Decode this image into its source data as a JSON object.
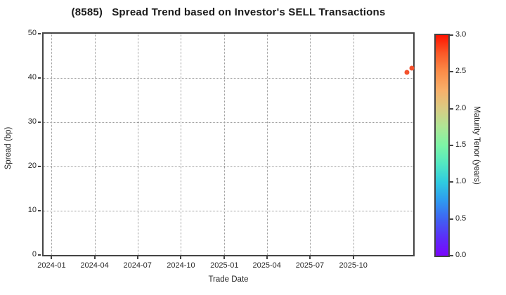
{
  "title": "(8585)   Spread Trend based on Investor's SELL Transactions",
  "chart_data": {
    "type": "scatter",
    "title": "(8585)   Spread Trend based on Investor's SELL Transactions",
    "xlabel": "Trade Date",
    "ylabel": "Spread (bp)",
    "xlim": [
      "2023-12-15",
      "2026-02-05"
    ],
    "ylim": [
      0,
      50
    ],
    "x_ticks": [
      {
        "date": "2024-01-01",
        "label": "2024-01"
      },
      {
        "date": "2024-04-01",
        "label": "2024-04"
      },
      {
        "date": "2024-07-01",
        "label": "2024-07"
      },
      {
        "date": "2024-10-01",
        "label": "2024-10"
      },
      {
        "date": "2025-01-01",
        "label": "2025-01"
      },
      {
        "date": "2025-04-01",
        "label": "2025-04"
      },
      {
        "date": "2025-07-01",
        "label": "2025-07"
      },
      {
        "date": "2025-10-01",
        "label": "2025-10"
      }
    ],
    "y_ticks": [
      0,
      10,
      20,
      30,
      40,
      50
    ],
    "grid": true,
    "legend": "none",
    "points": [
      {
        "date": "2026-01-22",
        "spread_bp": 41.3,
        "maturity_tenor_years": 2.7,
        "color": "#f4512c"
      },
      {
        "date": "2026-02-02",
        "spread_bp": 42.3,
        "maturity_tenor_years": 2.7,
        "color": "#f4512c"
      }
    ],
    "colorbar": {
      "label": "Maturity Tenor (years)",
      "min": 0.0,
      "max": 3.0,
      "ticks": [
        "0.0",
        "0.5",
        "1.0",
        "1.5",
        "2.0",
        "2.5",
        "3.0"
      ],
      "gradient_bottom_to_top": [
        "#7a06fd",
        "#5b2ef8",
        "#3f63f2",
        "#2e9bf0",
        "#2fcbe0",
        "#52e8c2",
        "#7cf4a6",
        "#aee695",
        "#d9cb83",
        "#f8b06a",
        "#fb8d49",
        "#fa5a28",
        "#ff1400"
      ]
    },
    "colors": {
      "spine": "#444444",
      "grid": "#9a9a9a",
      "text": "#262626",
      "background": "#ffffff"
    }
  }
}
